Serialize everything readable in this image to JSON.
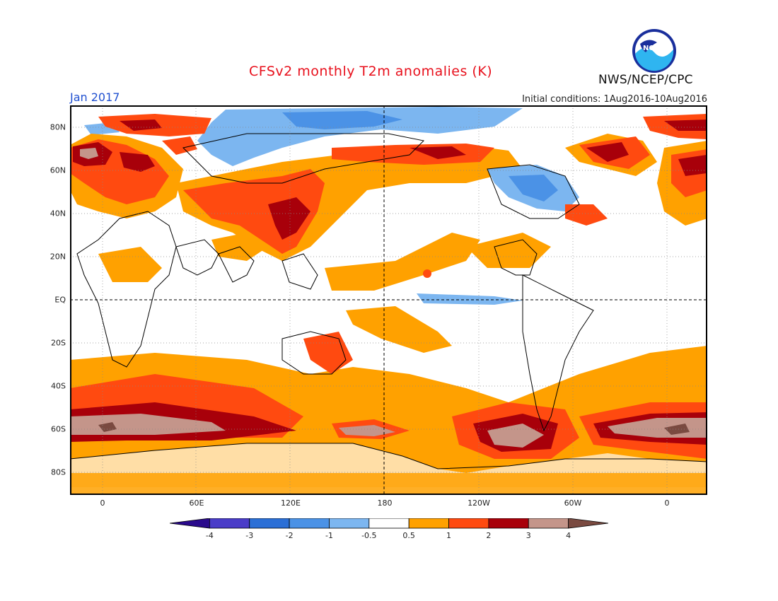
{
  "title": "CFSv2 monthly T2m anomalies (K)",
  "period": "Jan 2017",
  "initial_conditions": "Initial conditions: 1Aug2016-10Aug2016",
  "agency": "NWS/NCEP/CPC",
  "logo_text": "NOAA",
  "lon_labels": [
    "0",
    "60E",
    "120E",
    "180",
    "120W",
    "60W",
    "0"
  ],
  "lat_labels": [
    "80N",
    "60N",
    "40N",
    "20N",
    "EQ",
    "20S",
    "40S",
    "60S",
    "80S"
  ],
  "colorbar": {
    "labels": [
      "-4",
      "-3",
      "-2",
      "-1",
      "-0.5",
      "0.5",
      "1",
      "2",
      "3",
      "4"
    ],
    "colors": [
      "#2a0a8c",
      "#4a3cc8",
      "#2b6fd6",
      "#4b92e6",
      "#7cb6f0",
      "#ffffff",
      "#ffa100",
      "#ff4a10",
      "#a8000a",
      "#c4958a",
      "#7a4a40"
    ]
  },
  "colors": {
    "title": "#e8101c",
    "period": "#2050d0"
  }
}
